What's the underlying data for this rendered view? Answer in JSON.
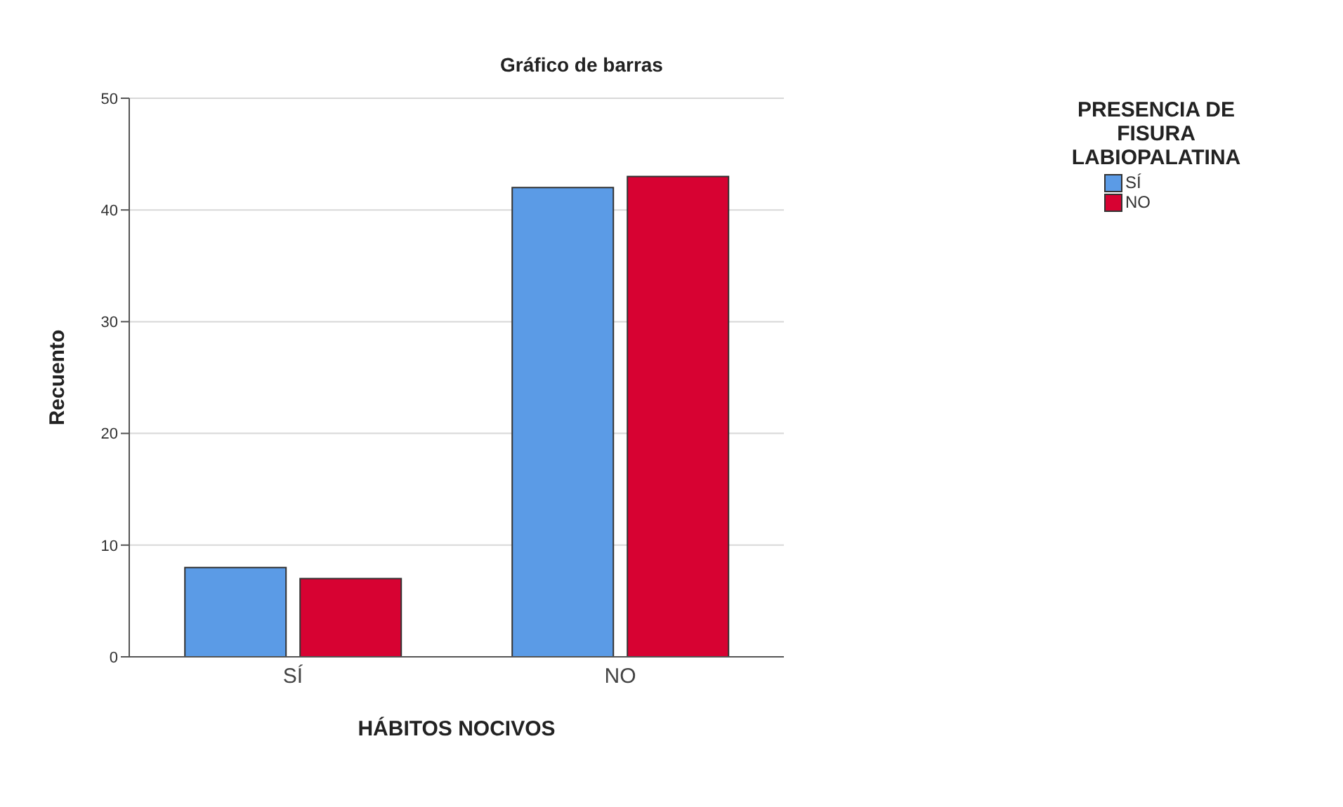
{
  "chart_data": {
    "type": "bar",
    "title": "Gráfico de barras",
    "xlabel": "HÁBITOS NOCIVOS",
    "ylabel": "Recuento",
    "legend_title": "PRESENCIA DE FISURA LABIOPALATINA",
    "categories": [
      "SÍ",
      "NO"
    ],
    "series": [
      {
        "name": "SÍ",
        "color": "#5b9be6",
        "values": [
          8,
          42
        ]
      },
      {
        "name": "NO",
        "color": "#d70232",
        "values": [
          7,
          43
        ]
      }
    ],
    "ylim": [
      0,
      50
    ],
    "yticks": [
      0,
      10,
      20,
      30,
      40,
      50
    ],
    "grid": "y",
    "legend": "top right"
  }
}
